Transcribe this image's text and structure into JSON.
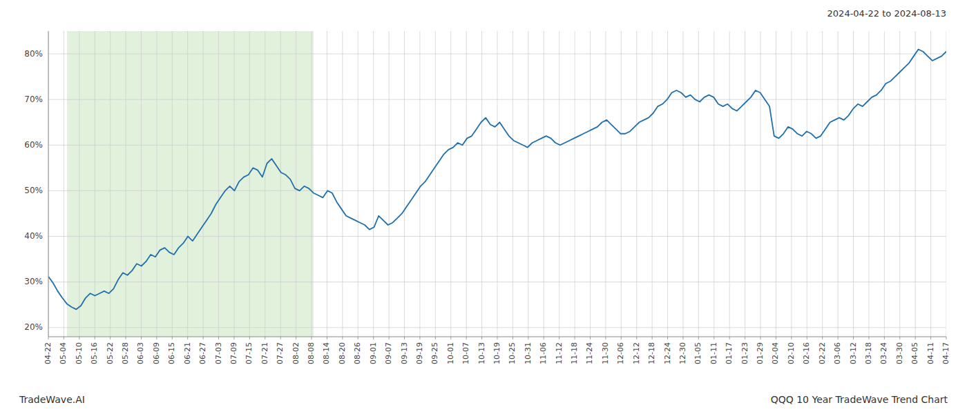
{
  "chart_data": {
    "type": "line",
    "title": "2024-04-22 to 2024-08-13",
    "annotations": [
      "TradeWave.AI",
      "QQQ 10 Year TradeWave Trend Chart"
    ],
    "color": "#1f6fad",
    "grid": true,
    "shade": {
      "from": 4,
      "to": 57,
      "color": "#c8e6c0"
    },
    "ylim": [
      18,
      85
    ],
    "yticks": [
      {
        "value": 20,
        "label": "20%"
      },
      {
        "value": 30,
        "label": "30%"
      },
      {
        "value": 40,
        "label": "40%"
      },
      {
        "value": 50,
        "label": "50%"
      },
      {
        "value": 60,
        "label": "60%"
      },
      {
        "value": 70,
        "label": "70%"
      },
      {
        "value": 80,
        "label": "80%"
      }
    ],
    "xlim": [
      0,
      193
    ],
    "xticks": [
      {
        "value": 0,
        "label": "04-22"
      },
      {
        "value": 3.3276,
        "label": "05-04"
      },
      {
        "value": 6.6552,
        "label": "05-10"
      },
      {
        "value": 9.9828,
        "label": "05-16"
      },
      {
        "value": 13.3103,
        "label": "05-22"
      },
      {
        "value": 16.6379,
        "label": "05-28"
      },
      {
        "value": 19.9655,
        "label": "06-03"
      },
      {
        "value": 23.2931,
        "label": "06-09"
      },
      {
        "value": 26.6207,
        "label": "06-15"
      },
      {
        "value": 29.9483,
        "label": "06-21"
      },
      {
        "value": 33.2759,
        "label": "06-27"
      },
      {
        "value": 36.6034,
        "label": "07-03"
      },
      {
        "value": 39.931,
        "label": "07-09"
      },
      {
        "value": 43.2586,
        "label": "07-15"
      },
      {
        "value": 46.5862,
        "label": "07-21"
      },
      {
        "value": 49.9138,
        "label": "07-27"
      },
      {
        "value": 53.2414,
        "label": "08-02"
      },
      {
        "value": 56.569,
        "label": "08-08"
      },
      {
        "value": 59.8966,
        "label": "08-14"
      },
      {
        "value": 63.2241,
        "label": "08-20"
      },
      {
        "value": 66.5517,
        "label": "08-26"
      },
      {
        "value": 69.8793,
        "label": "09-01"
      },
      {
        "value": 73.2069,
        "label": "09-07"
      },
      {
        "value": 76.5345,
        "label": "09-13"
      },
      {
        "value": 79.8621,
        "label": "09-19"
      },
      {
        "value": 83.1897,
        "label": "09-25"
      },
      {
        "value": 86.5172,
        "label": "10-01"
      },
      {
        "value": 89.8448,
        "label": "10-07"
      },
      {
        "value": 93.1724,
        "label": "10-13"
      },
      {
        "value": 96.5,
        "label": "10-19"
      },
      {
        "value": 99.8276,
        "label": "10-25"
      },
      {
        "value": 103.1552,
        "label": "10-31"
      },
      {
        "value": 106.4828,
        "label": "11-06"
      },
      {
        "value": 109.8103,
        "label": "11-12"
      },
      {
        "value": 113.1379,
        "label": "11-18"
      },
      {
        "value": 116.4655,
        "label": "11-24"
      },
      {
        "value": 119.7931,
        "label": "11-30"
      },
      {
        "value": 123.1207,
        "label": "12-06"
      },
      {
        "value": 126.4483,
        "label": "12-12"
      },
      {
        "value": 129.7759,
        "label": "12-18"
      },
      {
        "value": 133.1034,
        "label": "12-24"
      },
      {
        "value": 136.431,
        "label": "12-30"
      },
      {
        "value": 139.7586,
        "label": "01-05"
      },
      {
        "value": 143.0862,
        "label": "01-11"
      },
      {
        "value": 146.4138,
        "label": "01-17"
      },
      {
        "value": 149.7414,
        "label": "01-23"
      },
      {
        "value": 153.069,
        "label": "01-29"
      },
      {
        "value": 156.3966,
        "label": "02-04"
      },
      {
        "value": 159.7241,
        "label": "02-10"
      },
      {
        "value": 163.0517,
        "label": "02-16"
      },
      {
        "value": 166.3793,
        "label": "02-22"
      },
      {
        "value": 169.7069,
        "label": "03-06"
      },
      {
        "value": 173.0345,
        "label": "03-12"
      },
      {
        "value": 176.3621,
        "label": "03-18"
      },
      {
        "value": 179.6897,
        "label": "03-24"
      },
      {
        "value": 183.0172,
        "label": "03-30"
      },
      {
        "value": 186.3448,
        "label": "04-05"
      },
      {
        "value": 189.6724,
        "label": "04-11"
      },
      {
        "value": 193,
        "label": "04-17"
      }
    ],
    "values": [
      31.2,
      29.8,
      28.0,
      26.5,
      25.2,
      24.5,
      24.0,
      24.8,
      26.5,
      27.5,
      27.0,
      27.5,
      28.0,
      27.5,
      28.5,
      30.5,
      32.0,
      31.5,
      32.5,
      34.0,
      33.5,
      34.5,
      36.0,
      35.5,
      37.0,
      37.5,
      36.5,
      36.0,
      37.5,
      38.5,
      40.0,
      39.0,
      40.5,
      42.0,
      43.5,
      45.0,
      47.0,
      48.5,
      50.0,
      51.0,
      50.0,
      52.0,
      53.0,
      53.5,
      55.0,
      54.5,
      53.0,
      56.0,
      57.0,
      55.5,
      54.0,
      53.5,
      52.5,
      50.5,
      50.0,
      51.0,
      50.5,
      49.5,
      49.0,
      48.5,
      50.0,
      49.5,
      47.5,
      46.0,
      44.5,
      44.0,
      43.5,
      43.0,
      42.5,
      41.5,
      42.0,
      44.5,
      43.5,
      42.5,
      43.0,
      44.0,
      45.0,
      46.5,
      48.0,
      49.5,
      51.0,
      52.0,
      53.5,
      55.0,
      56.5,
      58.0,
      59.0,
      59.5,
      60.5,
      60.0,
      61.5,
      62.0,
      63.5,
      65.0,
      66.0,
      64.5,
      64.0,
      65.0,
      63.5,
      62.0,
      61.0,
      60.5,
      60.0,
      59.5,
      60.5,
      61.0,
      61.5,
      62.0,
      61.5,
      60.5,
      60.0,
      60.5,
      61.0,
      61.5,
      62.0,
      62.5,
      63.0,
      63.5,
      64.0,
      65.0,
      65.5,
      64.5,
      63.5,
      62.5,
      62.5,
      63.0,
      64.0,
      65.0,
      65.5,
      66.0,
      67.0,
      68.5,
      69.0,
      70.0,
      71.5,
      72.0,
      71.5,
      70.5,
      71.0,
      70.0,
      69.5,
      70.5,
      71.0,
      70.5,
      69.0,
      68.5,
      69.0,
      68.0,
      67.5,
      68.5,
      69.5,
      70.5,
      72.0,
      71.5,
      70.0,
      68.5,
      62.0,
      61.5,
      62.5,
      64.0,
      63.5,
      62.5,
      62.0,
      63.0,
      62.5,
      61.5,
      62.0,
      63.5,
      65.0,
      65.5,
      66.0,
      65.5,
      66.5,
      68.0,
      69.0,
      68.5,
      69.5,
      70.5,
      71.0,
      72.0,
      73.5,
      74.0,
      75.0,
      76.0,
      77.0,
      78.0,
      79.5,
      81.0,
      80.5,
      79.5,
      78.5,
      79.0,
      79.5,
      80.5
    ]
  }
}
